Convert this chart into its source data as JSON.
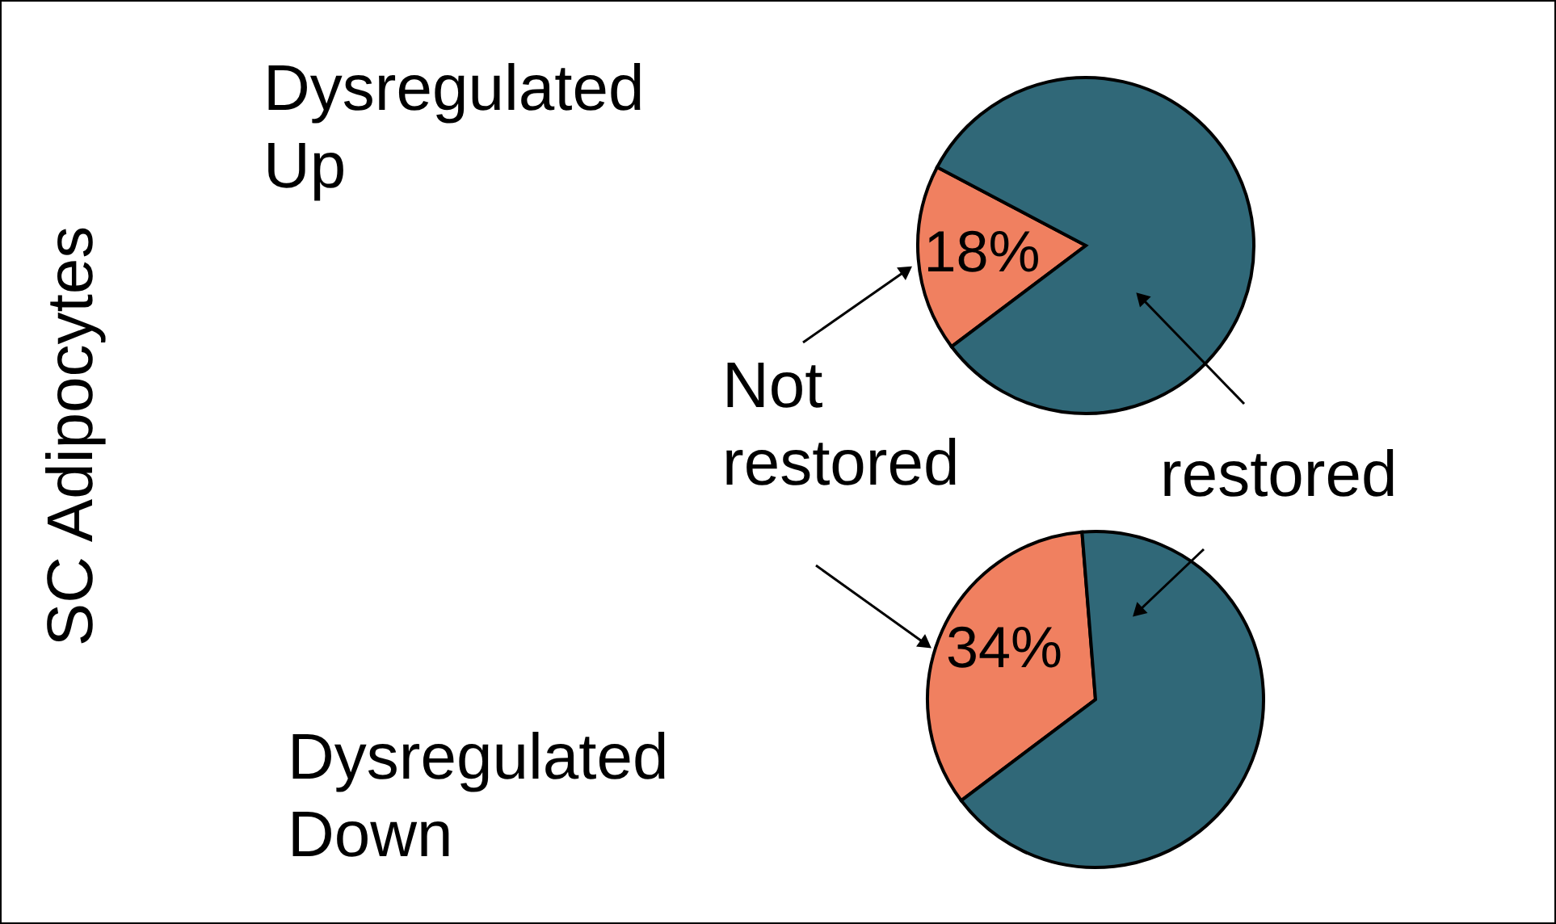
{
  "chart_data": [
    {
      "type": "pie",
      "title": "Dysregulated\nUp",
      "ylabel": "SC Adipocytes",
      "categories": [
        "Not\nrestored",
        "restored"
      ],
      "values": [
        18,
        82
      ],
      "colors": [
        "#f08060",
        "#306878"
      ],
      "value_labels": [
        "18%",
        null
      ]
    },
    {
      "type": "pie",
      "title": "Dysregulated\nDown",
      "categories": [
        null,
        null
      ],
      "values": [
        34,
        66
      ],
      "colors": [
        "#f08060",
        "#306878"
      ],
      "value_labels": [
        "34%",
        null
      ]
    }
  ]
}
